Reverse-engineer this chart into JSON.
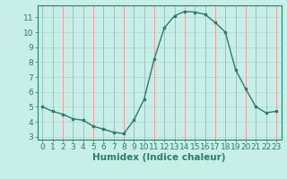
{
  "x": [
    0,
    1,
    2,
    3,
    4,
    5,
    6,
    7,
    8,
    9,
    10,
    11,
    12,
    13,
    14,
    15,
    16,
    17,
    18,
    19,
    20,
    21,
    22,
    23
  ],
  "y": [
    5.0,
    4.7,
    4.5,
    4.2,
    4.1,
    3.7,
    3.5,
    3.3,
    3.2,
    4.1,
    5.5,
    8.2,
    10.3,
    11.1,
    11.4,
    11.35,
    11.2,
    10.65,
    10.0,
    7.5,
    6.2,
    5.0,
    4.6,
    4.7
  ],
  "line_color": "#2d7a6e",
  "bg_color": "#c8eee8",
  "vgrid_color": "#e8a0a0",
  "hgrid_color": "#b8ddd8",
  "xlabel": "Humidex (Indice chaleur)",
  "ylim": [
    2.8,
    11.8
  ],
  "xlim": [
    -0.5,
    23.5
  ],
  "yticks": [
    3,
    4,
    5,
    6,
    7,
    8,
    9,
    10,
    11
  ],
  "xticks": [
    0,
    1,
    2,
    3,
    4,
    5,
    6,
    7,
    8,
    9,
    10,
    11,
    12,
    13,
    14,
    15,
    16,
    17,
    18,
    19,
    20,
    21,
    22,
    23
  ],
  "fontsize": 6.5,
  "label_fontsize": 7.5
}
